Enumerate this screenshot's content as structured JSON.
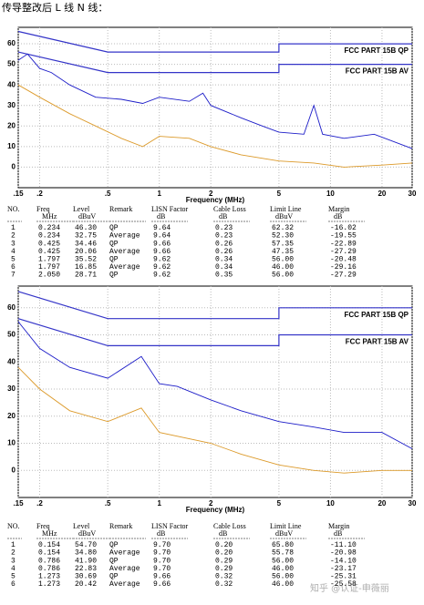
{
  "header": "传导整改后 L 线 N 线：",
  "chart_data": [
    {
      "type": "line",
      "xscale": "log",
      "x_label": "Frequency (MHz)",
      "xlim": [
        0.15,
        30
      ],
      "ylim": [
        -10,
        68
      ],
      "grid": true,
      "xticks": [
        {
          "value": 0.15,
          "label": ".15"
        },
        {
          "value": 0.2,
          "label": ".2"
        },
        {
          "value": 0.5,
          "label": ".5"
        },
        1,
        2,
        5,
        10,
        20,
        30
      ],
      "yticks": [
        0,
        10,
        20,
        30,
        40,
        50,
        60
      ],
      "series": [
        {
          "name": "FCC PART 15B QP",
          "color": "#3434c8",
          "x": [
            0.15,
            0.5,
            5,
            5,
            30
          ],
          "values": [
            66,
            56,
            56,
            60,
            60
          ]
        },
        {
          "name": "FCC PART 15B AV",
          "color": "#3434c8",
          "x": [
            0.15,
            0.5,
            5,
            5,
            30
          ],
          "values": [
            56,
            46,
            46,
            50,
            50
          ]
        },
        {
          "color": "#1c1cc8",
          "x": [
            0.15,
            0.17,
            0.2,
            0.234,
            0.3,
            0.425,
            0.6,
            0.8,
            1,
            1.5,
            1.797,
            2,
            3,
            4,
            5,
            7,
            8,
            9,
            12,
            18,
            30
          ],
          "values": [
            52,
            55,
            48,
            46,
            40,
            34,
            33,
            31,
            34,
            32,
            36,
            30,
            24,
            20,
            17,
            16,
            30,
            16,
            14,
            16,
            9
          ]
        },
        {
          "color": "#dc9a2a",
          "x": [
            0.15,
            0.2,
            0.3,
            0.425,
            0.6,
            0.8,
            1,
            1.5,
            2,
            3,
            5,
            8,
            12,
            20,
            30
          ],
          "values": [
            40,
            34,
            26,
            20,
            14,
            10,
            15,
            14,
            10,
            6,
            3,
            2,
            0,
            1,
            2
          ]
        }
      ]
    },
    {
      "type": "line",
      "xscale": "log",
      "x_label": "Frequency (MHz)",
      "xlim": [
        0.15,
        30
      ],
      "ylim": [
        -10,
        68
      ],
      "grid": true,
      "xticks": [
        {
          "value": 0.15,
          "label": ".15"
        },
        {
          "value": 0.2,
          "label": ".2"
        },
        {
          "value": 0.5,
          "label": ".5"
        },
        1,
        2,
        5,
        10,
        20,
        30
      ],
      "yticks": [
        0,
        10,
        20,
        30,
        40,
        50,
        60
      ],
      "series": [
        {
          "name": "FCC PART 15B QP",
          "color": "#3434c8",
          "x": [
            0.15,
            0.5,
            5,
            5,
            30
          ],
          "values": [
            66,
            56,
            56,
            60,
            60
          ]
        },
        {
          "name": "FCC PART 15B AV",
          "color": "#3434c8",
          "x": [
            0.15,
            0.5,
            5,
            5,
            30
          ],
          "values": [
            56,
            46,
            46,
            50,
            50
          ]
        },
        {
          "color": "#1c1cc8",
          "x": [
            0.15,
            0.154,
            0.2,
            0.3,
            0.5,
            0.786,
            1,
            1.273,
            2,
            3,
            5,
            8,
            12,
            20,
            30
          ],
          "values": [
            55,
            54,
            45,
            38,
            34,
            42,
            32,
            31,
            26,
            22,
            18,
            16,
            14,
            14,
            8
          ]
        },
        {
          "color": "#dc9a2a",
          "x": [
            0.15,
            0.2,
            0.3,
            0.5,
            0.786,
            1,
            2,
            3,
            5,
            8,
            12,
            20,
            30
          ],
          "values": [
            38,
            30,
            22,
            18,
            23,
            14,
            10,
            6,
            2,
            0,
            -1,
            0,
            0
          ]
        }
      ]
    }
  ],
  "tables": [
    {
      "columns": [
        "NO.",
        "Freq",
        "Level",
        "Remark",
        "LISN Factor",
        "Cable Loss",
        "Limit Line",
        "Margin"
      ],
      "units": [
        "",
        "MHz",
        "dBuV",
        "",
        "dB",
        "dB",
        "dBuV",
        "dB"
      ],
      "rows": [
        [
          "1",
          "0.234",
          "46.30",
          "QP",
          "9.64",
          "0.23",
          "62.32",
          "-16.02"
        ],
        [
          "2",
          "0.234",
          "32.75",
          "Average",
          "9.64",
          "0.23",
          "52.30",
          "-19.55"
        ],
        [
          "3",
          "0.425",
          "34.46",
          "QP",
          "9.66",
          "0.26",
          "57.35",
          "-22.89"
        ],
        [
          "4",
          "0.425",
          "20.06",
          "Average",
          "9.66",
          "0.26",
          "47.35",
          "-27.29"
        ],
        [
          "5",
          "1.797",
          "35.52",
          "QP",
          "9.62",
          "0.34",
          "56.00",
          "-20.48"
        ],
        [
          "6",
          "1.797",
          "16.85",
          "Average",
          "9.62",
          "0.34",
          "46.00",
          "-29.16"
        ],
        [
          "7",
          "2.050",
          "28.71",
          "QP",
          "9.62",
          "0.35",
          "56.00",
          "-27.29"
        ]
      ]
    },
    {
      "columns": [
        "NO.",
        "Freq",
        "Level",
        "Remark",
        "LISN Factor",
        "Cable Loss",
        "Limit Line",
        "Margin"
      ],
      "units": [
        "",
        "MHz",
        "dBuV",
        "",
        "dB",
        "dB",
        "dBuV",
        "dB"
      ],
      "rows": [
        [
          "1",
          "0.154",
          "54.70",
          "QP",
          "9.70",
          "0.20",
          "65.80",
          "-11.10"
        ],
        [
          "2",
          "0.154",
          "34.80",
          "Average",
          "9.70",
          "0.20",
          "55.78",
          "-20.98"
        ],
        [
          "3",
          "0.786",
          "41.90",
          "QP",
          "9.70",
          "0.29",
          "56.00",
          "-14.10"
        ],
        [
          "4",
          "0.786",
          "22.83",
          "Average",
          "9.70",
          "0.29",
          "46.00",
          "-23.17"
        ],
        [
          "5",
          "1.273",
          "30.69",
          "QP",
          "9.66",
          "0.32",
          "56.00",
          "-25.31"
        ],
        [
          "6",
          "1.273",
          "20.42",
          "Average",
          "9.66",
          "0.32",
          "46.00",
          "-25.58"
        ]
      ]
    }
  ],
  "watermark": "知乎 @认证-申薇丽"
}
